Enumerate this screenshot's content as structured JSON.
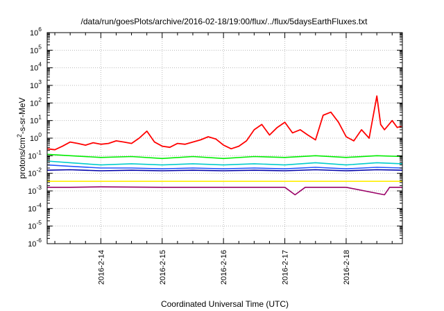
{
  "chart_data": {
    "type": "line",
    "title": "/data/run/goesPlots/archive/2016-02-18/19:00/flux/../flux/5daysEarthFluxes.txt",
    "xlabel": "Coordinated Universal Time (UTC)",
    "ylabel": "protons/cm²-s-sr-MeV",
    "ylabel_parts": {
      "pre": "protons/cm",
      "sup": "2",
      "post": "-s-sr-MeV"
    },
    "yscale": "log",
    "ylim": [
      1e-06,
      1000000.0
    ],
    "xlim": [
      "2016-02-13 03:00",
      "2016-02-18 22:00"
    ],
    "grid": true,
    "x_ticks": [
      "2016-2-14",
      "2016-2-15",
      "2016-2-16",
      "2016-2-17",
      "2016-2-18"
    ],
    "y_ticks": [
      {
        "base": "10",
        "exp": "-6"
      },
      {
        "base": "10",
        "exp": "-5"
      },
      {
        "base": "10",
        "exp": "-4"
      },
      {
        "base": "10",
        "exp": "-3"
      },
      {
        "base": "10",
        "exp": "-2"
      },
      {
        "base": "10",
        "exp": "-1"
      },
      {
        "base": "10",
        "exp": "0"
      },
      {
        "base": "10",
        "exp": "1"
      },
      {
        "base": "10",
        "exp": "2"
      },
      {
        "base": "10",
        "exp": "3"
      },
      {
        "base": "10",
        "exp": "4"
      },
      {
        "base": "10",
        "exp": "5"
      },
      {
        "base": "10",
        "exp": "6"
      }
    ],
    "series": [
      {
        "color": "#ff0000",
        "points": [
          [
            "2016-02-13 03:00",
            0.25
          ],
          [
            "2016-02-13 06:00",
            0.22
          ],
          [
            "2016-02-13 09:00",
            0.35
          ],
          [
            "2016-02-13 12:00",
            0.6
          ],
          [
            "2016-02-13 15:00",
            0.5
          ],
          [
            "2016-02-13 18:00",
            0.4
          ],
          [
            "2016-02-13 21:00",
            0.55
          ],
          [
            "2016-02-14 00:00",
            0.45
          ],
          [
            "2016-02-14 03:00",
            0.5
          ],
          [
            "2016-02-14 06:00",
            0.7
          ],
          [
            "2016-02-14 09:00",
            0.6
          ],
          [
            "2016-02-14 12:00",
            0.5
          ],
          [
            "2016-02-14 15:00",
            1.0
          ],
          [
            "2016-02-14 18:00",
            2.5
          ],
          [
            "2016-02-14 21:00",
            0.6
          ],
          [
            "2016-02-15 00:00",
            0.35
          ],
          [
            "2016-02-15 03:00",
            0.3
          ],
          [
            "2016-02-15 06:00",
            0.5
          ],
          [
            "2016-02-15 09:00",
            0.45
          ],
          [
            "2016-02-15 12:00",
            0.6
          ],
          [
            "2016-02-15 15:00",
            0.8
          ],
          [
            "2016-02-15 18:00",
            1.2
          ],
          [
            "2016-02-15 21:00",
            0.9
          ],
          [
            "2016-02-16 00:00",
            0.4
          ],
          [
            "2016-02-16 03:00",
            0.25
          ],
          [
            "2016-02-16 06:00",
            0.35
          ],
          [
            "2016-02-16 09:00",
            0.7
          ],
          [
            "2016-02-16 12:00",
            3.0
          ],
          [
            "2016-02-16 15:00",
            6.0
          ],
          [
            "2016-02-16 18:00",
            1.5
          ],
          [
            "2016-02-16 21:00",
            4.0
          ],
          [
            "2016-02-17 00:00",
            8.0
          ],
          [
            "2016-02-17 03:00",
            2.0
          ],
          [
            "2016-02-17 06:00",
            3.0
          ],
          [
            "2016-02-17 09:00",
            1.5
          ],
          [
            "2016-02-17 12:00",
            0.8
          ],
          [
            "2016-02-17 15:00",
            20.0
          ],
          [
            "2016-02-17 18:00",
            30.0
          ],
          [
            "2016-02-17 21:00",
            8.0
          ],
          [
            "2016-02-18 00:00",
            1.2
          ],
          [
            "2016-02-18 03:00",
            0.7
          ],
          [
            "2016-02-18 06:00",
            3.0
          ],
          [
            "2016-02-18 09:00",
            1.0
          ],
          [
            "2016-02-18 12:00",
            250.0
          ],
          [
            "2016-02-18 13:30",
            6.0
          ],
          [
            "2016-02-18 15:00",
            3.0
          ],
          [
            "2016-02-18 18:00",
            10.0
          ],
          [
            "2016-02-18 20:00",
            4.0
          ],
          [
            "2016-02-18 22:00",
            5.0
          ]
        ]
      },
      {
        "color": "#00ee00",
        "points": [
          [
            "2016-02-13 03:00",
            0.12
          ],
          [
            "2016-02-13 12:00",
            0.1
          ],
          [
            "2016-02-14 00:00",
            0.08
          ],
          [
            "2016-02-14 12:00",
            0.09
          ],
          [
            "2016-02-15 00:00",
            0.07
          ],
          [
            "2016-02-15 12:00",
            0.09
          ],
          [
            "2016-02-16 00:00",
            0.07
          ],
          [
            "2016-02-16 12:00",
            0.09
          ],
          [
            "2016-02-17 00:00",
            0.08
          ],
          [
            "2016-02-17 12:00",
            0.1
          ],
          [
            "2016-02-18 00:00",
            0.08
          ],
          [
            "2016-02-18 12:00",
            0.1
          ],
          [
            "2016-02-18 22:00",
            0.09
          ]
        ]
      },
      {
        "color": "#00cccc",
        "points": [
          [
            "2016-02-13 03:00",
            0.05
          ],
          [
            "2016-02-13 12:00",
            0.04
          ],
          [
            "2016-02-14 00:00",
            0.03
          ],
          [
            "2016-02-14 12:00",
            0.035
          ],
          [
            "2016-02-15 00:00",
            0.03
          ],
          [
            "2016-02-15 12:00",
            0.035
          ],
          [
            "2016-02-16 00:00",
            0.03
          ],
          [
            "2016-02-16 12:00",
            0.035
          ],
          [
            "2016-02-17 00:00",
            0.03
          ],
          [
            "2016-02-17 12:00",
            0.04
          ],
          [
            "2016-02-18 00:00",
            0.03
          ],
          [
            "2016-02-18 12:00",
            0.04
          ],
          [
            "2016-02-18 22:00",
            0.035
          ]
        ]
      },
      {
        "color": "#2255ff",
        "points": [
          [
            "2016-02-13 03:00",
            0.03
          ],
          [
            "2016-02-13 12:00",
            0.025
          ],
          [
            "2016-02-14 00:00",
            0.02
          ],
          [
            "2016-02-14 12:00",
            0.02
          ],
          [
            "2016-02-15 00:00",
            0.018
          ],
          [
            "2016-02-15 12:00",
            0.02
          ],
          [
            "2016-02-16 00:00",
            0.018
          ],
          [
            "2016-02-16 12:00",
            0.02
          ],
          [
            "2016-02-17 00:00",
            0.018
          ],
          [
            "2016-02-17 12:00",
            0.022
          ],
          [
            "2016-02-18 00:00",
            0.018
          ],
          [
            "2016-02-18 12:00",
            0.022
          ],
          [
            "2016-02-18 22:00",
            0.02
          ]
        ]
      },
      {
        "color": "#0000aa",
        "points": [
          [
            "2016-02-13 03:00",
            0.015
          ],
          [
            "2016-02-13 12:00",
            0.016
          ],
          [
            "2016-02-14 00:00",
            0.014
          ],
          [
            "2016-02-14 12:00",
            0.015
          ],
          [
            "2016-02-15 00:00",
            0.014
          ],
          [
            "2016-02-15 12:00",
            0.015
          ],
          [
            "2016-02-16 00:00",
            0.014
          ],
          [
            "2016-02-16 12:00",
            0.015
          ],
          [
            "2016-02-17 00:00",
            0.014
          ],
          [
            "2016-02-17 12:00",
            0.016
          ],
          [
            "2016-02-18 00:00",
            0.014
          ],
          [
            "2016-02-18 12:00",
            0.016
          ],
          [
            "2016-02-18 22:00",
            0.015
          ]
        ]
      },
      {
        "color": "#ffee00",
        "points": [
          [
            "2016-02-13 03:00",
            0.0035
          ],
          [
            "2016-02-14 00:00",
            0.0035
          ],
          [
            "2016-02-15 00:00",
            0.0035
          ],
          [
            "2016-02-16 00:00",
            0.0035
          ],
          [
            "2016-02-17 00:00",
            0.0035
          ],
          [
            "2016-02-18 00:00",
            0.0035
          ],
          [
            "2016-02-18 22:00",
            0.0035
          ]
        ]
      },
      {
        "color": "#990066",
        "points": [
          [
            "2016-02-13 03:00",
            0.0016
          ],
          [
            "2016-02-13 12:00",
            0.0016
          ],
          [
            "2016-02-14 00:00",
            0.0017
          ],
          [
            "2016-02-15 00:00",
            0.0016
          ],
          [
            "2016-02-16 00:00",
            0.0016
          ],
          [
            "2016-02-17 00:00",
            0.0016
          ],
          [
            "2016-02-17 04:00",
            0.0006
          ],
          [
            "2016-02-17 08:00",
            0.0016
          ],
          [
            "2016-02-18 00:00",
            0.0016
          ],
          [
            "2016-02-18 15:00",
            0.0006
          ],
          [
            "2016-02-18 17:00",
            0.0016
          ],
          [
            "2016-02-18 22:00",
            0.0016
          ]
        ]
      }
    ]
  }
}
